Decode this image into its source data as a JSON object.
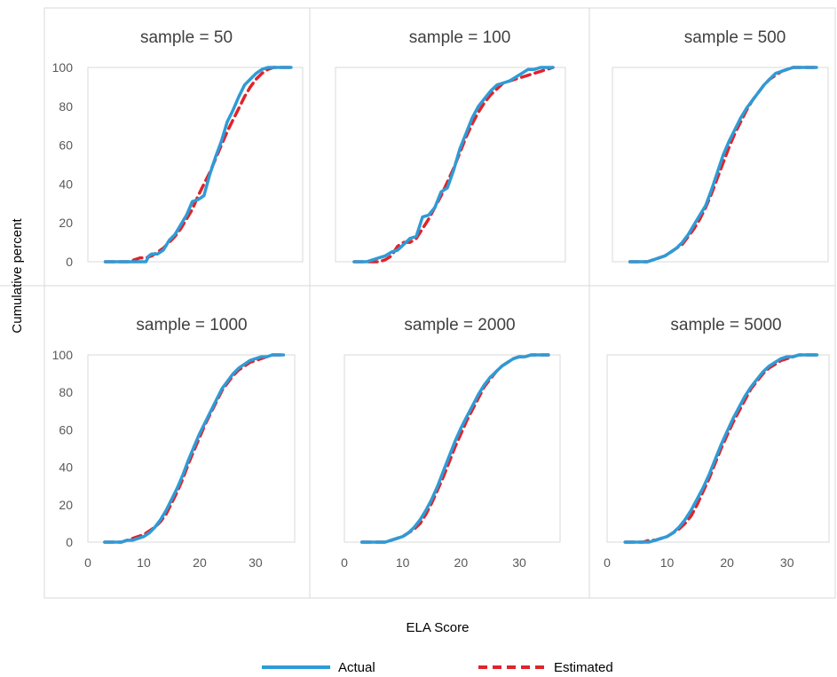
{
  "chart_data": {
    "type": "line",
    "ylabel": "Cumulative percent",
    "xlabel": "ELA Score",
    "y_ticks": [
      "0",
      "20",
      "40",
      "60",
      "80",
      "100"
    ],
    "x_ticks": [
      "0",
      "10",
      "20",
      "30"
    ],
    "ylim": [
      0,
      100
    ],
    "xlim": [
      0,
      37
    ],
    "legend": {
      "placement": "bottom",
      "items": [
        {
          "name": "Actual",
          "color": "#2E9BD6",
          "style": "solid"
        },
        {
          "name": "Estimated",
          "color": "#E0242B",
          "style": "dashed"
        }
      ]
    },
    "panels": [
      {
        "title": "sample = 50",
        "series": [
          {
            "name": "Actual",
            "x": [
              3,
              4,
              5,
              6,
              7,
              8,
              9,
              10,
              10.5,
              11,
              12,
              13,
              14,
              15,
              16,
              17,
              18,
              19,
              20,
              21,
              22,
              23,
              24,
              25,
              26,
              27,
              28,
              29,
              30,
              31,
              32,
              33,
              34,
              35
            ],
            "y": [
              0,
              0,
              0,
              0,
              0,
              0,
              0,
              0,
              3,
              4,
              4,
              6,
              11,
              14,
              19,
              24,
              31,
              32,
              34,
              45,
              54,
              62,
              72,
              78,
              85,
              91,
              94,
              97,
              99,
              100,
              100,
              100,
              100,
              100
            ]
          },
          {
            "name": "Estimated",
            "x": [
              3,
              4,
              5,
              6,
              7,
              8,
              9,
              10,
              11,
              12,
              13,
              14,
              15,
              16,
              17,
              18,
              19,
              20,
              21,
              22,
              23,
              24,
              25,
              26,
              27,
              28,
              29,
              30,
              31,
              32,
              33,
              34,
              35
            ],
            "y": [
              0,
              0,
              0,
              0,
              0,
              1,
              2,
              2,
              3,
              5,
              7,
              10,
              13,
              17,
              22,
              27,
              34,
              40,
              46,
              53,
              60,
              67,
              73,
              79,
              85,
              90,
              94,
              97,
              99,
              100,
              100,
              100,
              100
            ]
          }
        ]
      },
      {
        "title": "sample = 100",
        "series": [
          {
            "name": "Actual",
            "x": [
              3,
              4,
              5,
              6,
              7,
              8,
              9,
              10,
              11,
              12,
              13,
              14,
              15,
              16,
              17,
              18,
              19,
              20,
              21,
              22,
              23,
              24,
              25,
              26,
              27,
              28,
              29,
              30,
              31,
              32,
              33,
              34,
              35
            ],
            "y": [
              0,
              0,
              0,
              1,
              2,
              3,
              5,
              6,
              9,
              12,
              13,
              23,
              24,
              28,
              36,
              38,
              47,
              58,
              66,
              74,
              80,
              84,
              88,
              91,
              92,
              93,
              95,
              97,
              99,
              99,
              100,
              100,
              100
            ]
          },
          {
            "name": "Estimated",
            "x": [
              3,
              4,
              5,
              6,
              7,
              8,
              9,
              10,
              11,
              12,
              13,
              14,
              15,
              16,
              17,
              18,
              19,
              20,
              21,
              22,
              23,
              24,
              25,
              26,
              27,
              28,
              29,
              30,
              31,
              32,
              33,
              34,
              35
            ],
            "y": [
              0,
              0,
              0,
              0,
              0,
              1,
              3,
              8,
              10,
              10,
              12,
              17,
              22,
              28,
              34,
              41,
              48,
              56,
              64,
              71,
              77,
              82,
              86,
              89,
              92,
              93,
              94,
              95,
              96,
              97,
              98,
              99,
              100
            ]
          }
        ]
      },
      {
        "title": "sample = 500",
        "series": [
          {
            "name": "Actual",
            "x": [
              3,
              4,
              5,
              6,
              7,
              8,
              9,
              10,
              11,
              12,
              13,
              14,
              15,
              16,
              17,
              18,
              19,
              20,
              21,
              22,
              23,
              24,
              25,
              26,
              27,
              28,
              29,
              30,
              31,
              32,
              33,
              34,
              35
            ],
            "y": [
              0,
              0,
              0,
              0,
              1,
              2,
              3,
              5,
              7,
              10,
              14,
              19,
              24,
              29,
              37,
              46,
              55,
              62,
              68,
              74,
              79,
              83,
              87,
              91,
              94,
              97,
              98,
              99,
              100,
              100,
              100,
              100,
              100
            ]
          },
          {
            "name": "Estimated",
            "x": [
              3,
              4,
              5,
              6,
              7,
              8,
              9,
              10,
              11,
              12,
              13,
              14,
              15,
              16,
              17,
              18,
              19,
              20,
              21,
              22,
              23,
              24,
              25,
              26,
              27,
              28,
              29,
              30,
              31,
              32,
              33,
              34,
              35
            ],
            "y": [
              0,
              0,
              0,
              0,
              1,
              2,
              3,
              5,
              7,
              9,
              13,
              17,
              22,
              28,
              35,
              43,
              51,
              59,
              66,
              72,
              78,
              83,
              87,
              91,
              94,
              96,
              98,
              99,
              100,
              100,
              100,
              100,
              100
            ]
          }
        ]
      },
      {
        "title": "sample = 1000",
        "series": [
          {
            "name": "Actual",
            "x": [
              3,
              4,
              5,
              6,
              7,
              8,
              9,
              10,
              11,
              12,
              13,
              14,
              15,
              16,
              17,
              18,
              19,
              20,
              21,
              22,
              23,
              24,
              25,
              26,
              27,
              28,
              29,
              30,
              31,
              32,
              33,
              34,
              35
            ],
            "y": [
              0,
              0,
              0,
              0,
              1,
              1,
              2,
              3,
              5,
              8,
              12,
              17,
              23,
              29,
              36,
              44,
              51,
              58,
              64,
              70,
              76,
              82,
              86,
              90,
              93,
              95,
              97,
              98,
              99,
              99,
              100,
              100,
              100
            ]
          },
          {
            "name": "Estimated",
            "x": [
              3,
              4,
              5,
              6,
              7,
              8,
              9,
              10,
              11,
              12,
              13,
              14,
              15,
              16,
              17,
              18,
              19,
              20,
              21,
              22,
              23,
              24,
              25,
              26,
              27,
              28,
              29,
              30,
              31,
              32,
              33,
              34,
              35
            ],
            "y": [
              0,
              0,
              0,
              0,
              1,
              2,
              3,
              4,
              6,
              8,
              11,
              15,
              21,
              27,
              34,
              42,
              49,
              56,
              63,
              69,
              75,
              81,
              85,
              89,
              92,
              94,
              96,
              97,
              98,
              99,
              100,
              100,
              100
            ]
          }
        ]
      },
      {
        "title": "sample = 2000",
        "series": [
          {
            "name": "Actual",
            "x": [
              3,
              4,
              5,
              6,
              7,
              8,
              9,
              10,
              11,
              12,
              13,
              14,
              15,
              16,
              17,
              18,
              19,
              20,
              21,
              22,
              23,
              24,
              25,
              26,
              27,
              28,
              29,
              30,
              31,
              32,
              33,
              34,
              35
            ],
            "y": [
              0,
              0,
              0,
              0,
              0,
              1,
              2,
              3,
              5,
              8,
              12,
              17,
              23,
              30,
              38,
              46,
              54,
              61,
              67,
              73,
              79,
              84,
              88,
              91,
              94,
              96,
              98,
              99,
              99,
              100,
              100,
              100,
              100
            ]
          },
          {
            "name": "Estimated",
            "x": [
              3,
              4,
              5,
              6,
              7,
              8,
              9,
              10,
              11,
              12,
              13,
              14,
              15,
              16,
              17,
              18,
              19,
              20,
              21,
              22,
              23,
              24,
              25,
              26,
              27,
              28,
              29,
              30,
              31,
              32,
              33,
              34,
              35
            ],
            "y": [
              0,
              0,
              0,
              0,
              0,
              1,
              2,
              3,
              5,
              7,
              10,
              15,
              21,
              28,
              35,
              43,
              51,
              58,
              65,
              71,
              77,
              83,
              87,
              91,
              94,
              96,
              98,
              99,
              99,
              100,
              100,
              100,
              100
            ]
          }
        ]
      },
      {
        "title": "sample = 5000",
        "series": [
          {
            "name": "Actual",
            "x": [
              3,
              4,
              5,
              6,
              7,
              8,
              9,
              10,
              11,
              12,
              13,
              14,
              15,
              16,
              17,
              18,
              19,
              20,
              21,
              22,
              23,
              24,
              25,
              26,
              27,
              28,
              29,
              30,
              31,
              32,
              33,
              34,
              35
            ],
            "y": [
              0,
              0,
              0,
              0,
              0,
              1,
              2,
              3,
              5,
              8,
              12,
              17,
              23,
              29,
              36,
              44,
              52,
              59,
              66,
              72,
              78,
              83,
              87,
              91,
              94,
              96,
              98,
              99,
              99,
              100,
              100,
              100,
              100
            ]
          },
          {
            "name": "Estimated",
            "x": [
              3,
              4,
              5,
              6,
              7,
              8,
              9,
              10,
              11,
              12,
              13,
              14,
              15,
              16,
              17,
              18,
              19,
              20,
              21,
              22,
              23,
              24,
              25,
              26,
              27,
              28,
              29,
              30,
              31,
              32,
              33,
              34,
              35
            ],
            "y": [
              0,
              0,
              0,
              0,
              1,
              1,
              2,
              3,
              5,
              7,
              10,
              14,
              20,
              27,
              34,
              42,
              50,
              57,
              64,
              70,
              76,
              82,
              86,
              90,
              93,
              95,
              97,
              98,
              99,
              100,
              100,
              100,
              100
            ]
          }
        ]
      }
    ]
  }
}
